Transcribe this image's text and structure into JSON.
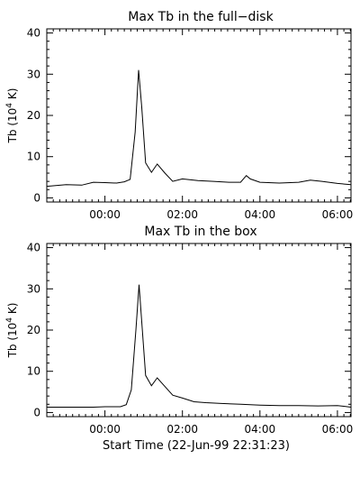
{
  "figure": {
    "xlabel": "Start Time (22-Jun-99 22:31:23)"
  },
  "chart_data": [
    {
      "type": "line",
      "title": "Max Tb in the full−disk",
      "ylabel_prefix": "Tb (10",
      "ylabel_exp": "4",
      "ylabel_suffix": " K)",
      "xlim": [
        -1.5,
        6.35
      ],
      "ylim": [
        -1,
        41
      ],
      "xticks": [
        0,
        2,
        4,
        6
      ],
      "xtick_labels": [
        "00:00",
        "02:00",
        "04:00",
        "06:00"
      ],
      "yticks": [
        0,
        10,
        20,
        30,
        40
      ],
      "ytick_labels": [
        "0",
        "10",
        "20",
        "30",
        "40"
      ],
      "series": [
        {
          "x": [
            -1.5,
            -1.0,
            -0.6,
            -0.3,
            0.0,
            0.3,
            0.5,
            0.65,
            0.78,
            0.87,
            0.95,
            1.05,
            1.2,
            1.35,
            1.55,
            1.75,
            2.0,
            2.4,
            2.8,
            3.2,
            3.5,
            3.65,
            3.75,
            4.0,
            4.5,
            5.0,
            5.3,
            5.6,
            6.0,
            6.35
          ],
          "y": [
            2.8,
            3.2,
            3.1,
            3.8,
            3.7,
            3.6,
            3.9,
            4.5,
            16.0,
            31.0,
            22.0,
            8.5,
            6.2,
            8.2,
            6.0,
            4.0,
            4.6,
            4.2,
            4.0,
            3.8,
            3.8,
            5.4,
            4.6,
            3.8,
            3.6,
            3.8,
            4.3,
            4.0,
            3.5,
            3.2
          ]
        }
      ]
    },
    {
      "type": "line",
      "title": "Max Tb in the box",
      "ylabel_prefix": "Tb (10",
      "ylabel_exp": "4",
      "ylabel_suffix": " K)",
      "xlim": [
        -1.5,
        6.35
      ],
      "ylim": [
        -1,
        41
      ],
      "xticks": [
        0,
        2,
        4,
        6
      ],
      "xtick_labels": [
        "00:00",
        "02:00",
        "04:00",
        "06:00"
      ],
      "yticks": [
        0,
        10,
        20,
        30,
        40
      ],
      "ytick_labels": [
        "0",
        "10",
        "20",
        "30",
        "40"
      ],
      "series": [
        {
          "x": [
            -1.5,
            -0.5,
            -0.3,
            0.0,
            0.4,
            0.55,
            0.68,
            0.8,
            0.88,
            0.95,
            1.05,
            1.2,
            1.35,
            1.5,
            1.75,
            2.0,
            2.3,
            2.6,
            3.0,
            3.5,
            4.0,
            4.5,
            5.0,
            5.5,
            6.0,
            6.35
          ],
          "y": [
            1.3,
            1.3,
            1.3,
            1.4,
            1.4,
            1.9,
            5.5,
            20.0,
            31.0,
            22.0,
            9.0,
            6.5,
            8.4,
            6.8,
            4.2,
            3.5,
            2.6,
            2.4,
            2.2,
            2.0,
            1.8,
            1.7,
            1.7,
            1.6,
            1.7,
            1.3
          ]
        }
      ]
    }
  ]
}
